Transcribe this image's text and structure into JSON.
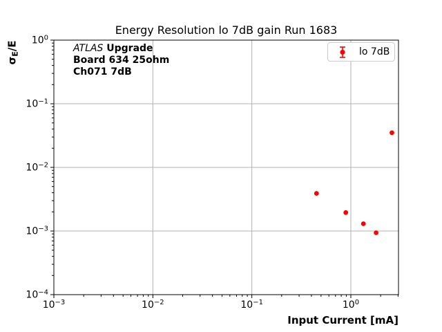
{
  "chart_data": {
    "type": "scatter",
    "title": "Energy Resolution lo 7dB gain Run 1683",
    "xlabel": "Input Current [mA]",
    "ylabel": "σE/E",
    "ylabel_parts": {
      "sigma": "σ",
      "sub": "E",
      "rest": "/E"
    },
    "xscale": "log",
    "yscale": "log",
    "xlim": [
      0.001,
      3.03
    ],
    "ylim": [
      0.0001,
      1
    ],
    "x_tick_exponents": [
      -3,
      -2,
      -1,
      0
    ],
    "y_tick_exponents": [
      0,
      -1,
      -2,
      -3,
      -4
    ],
    "grid": "major-only",
    "grid_color": "#b0b0b0",
    "axis_color": "#000000",
    "legend_position": "upper-right",
    "series": [
      {
        "name": "lo 7dB",
        "color": "#ff0000",
        "marker": "circle-errorbar",
        "points": [
          {
            "x": 0.45,
            "y": 0.0039
          },
          {
            "x": 0.89,
            "y": 0.00195
          },
          {
            "x": 1.34,
            "y": 0.0013
          },
          {
            "x": 1.8,
            "y": 0.00094
          },
          {
            "x": 2.6,
            "y": 0.035
          }
        ]
      }
    ],
    "annotation": {
      "experiment": "ATLAS",
      "experiment_suffix": " Upgrade",
      "line2": "Board 634 25ohm",
      "line3": "Ch071 7dB"
    }
  }
}
